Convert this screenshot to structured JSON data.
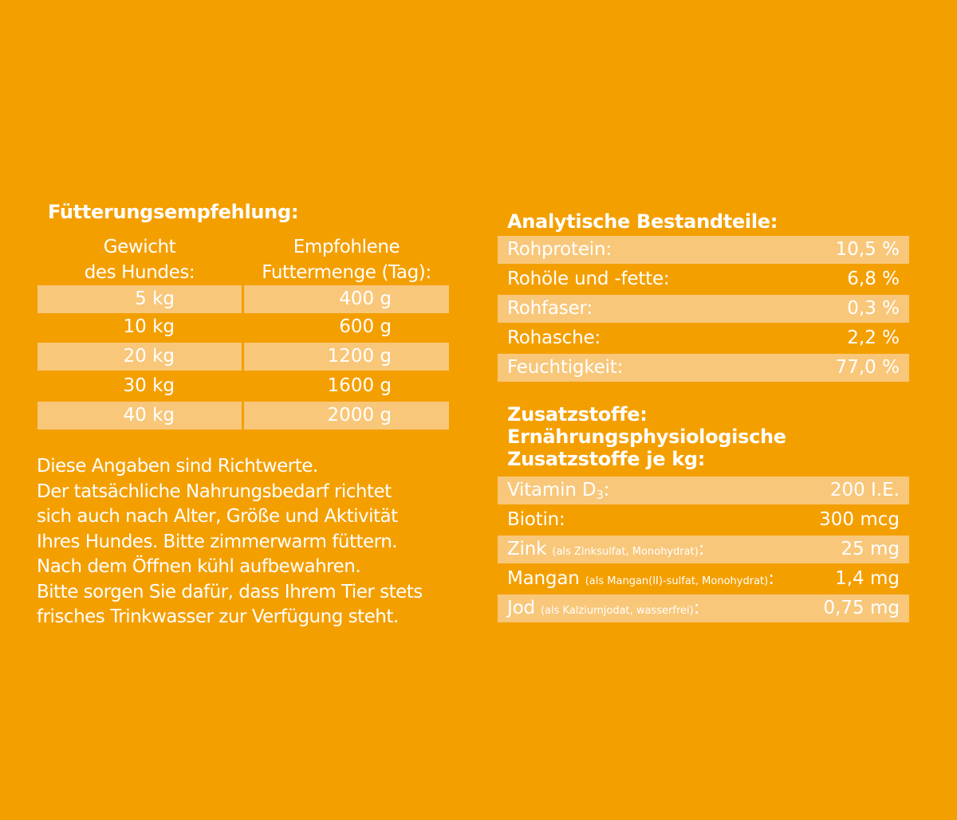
{
  "feeding": {
    "title": "Fütterungsempfehlung:",
    "header_weight_1": "Gewicht",
    "header_weight_2": "des Hundes:",
    "header_amount_1": "Empfohlene",
    "header_amount_2": "Futtermenge (Tag):",
    "rows": [
      {
        "weight": "5 kg",
        "amount": "400 g"
      },
      {
        "weight": "10 kg",
        "amount": "600 g"
      },
      {
        "weight": "20 kg",
        "amount": "1200 g"
      },
      {
        "weight": "30 kg",
        "amount": "1600 g"
      },
      {
        "weight": "40 kg",
        "amount": "2000 g"
      }
    ]
  },
  "note": {
    "lines": [
      "Diese Angaben sind Richtwerte.",
      "Der tatsächliche Nahrungsbedarf richtet",
      "sich auch nach Alter, Größe und Aktivität",
      "Ihres Hundes. Bitte zimmerwarm füttern.",
      "Nach dem Öffnen kühl aufbewahren.",
      "Bitte sorgen Sie dafür, dass Ihrem Tier stets",
      "frisches Trinkwasser zur Verfügung steht."
    ]
  },
  "analytic": {
    "title": "Analytische Bestandteile:",
    "rows": [
      {
        "label": "Rohprotein:",
        "value": "10,5 %"
      },
      {
        "label": "Rohöle und -fette:",
        "value": "6,8 %"
      },
      {
        "label": "Rohfaser:",
        "value": "0,3 %"
      },
      {
        "label": "Rohasche:",
        "value": "2,2 %"
      },
      {
        "label": "Feuchtigkeit:",
        "value": "77,0 %"
      }
    ]
  },
  "additives": {
    "title_1": "Zusatzstoffe:",
    "title_2": "Ernährungsphysiologische",
    "title_3": "Zusatzstoffe je kg:",
    "rows": [
      {
        "label": "Vitamin D",
        "sub": "3",
        "colon": ":",
        "value": "200 I.E."
      },
      {
        "label": "Biotin:",
        "value": "300 mcg"
      },
      {
        "label": "Zink",
        "detail": "(als Zinksulfat, Monohydrat)",
        "colon": ":",
        "value": "25 mg"
      },
      {
        "label": "Mangan",
        "detail": "(als Mangan(II)-sulfat, Monohydrat)",
        "colon": ":",
        "value": "1,4 mg"
      },
      {
        "label": "Jod",
        "detail": "(als Kalziumjodat, wasserfrei)",
        "colon": ":",
        "value": "0,75 mg"
      }
    ]
  }
}
